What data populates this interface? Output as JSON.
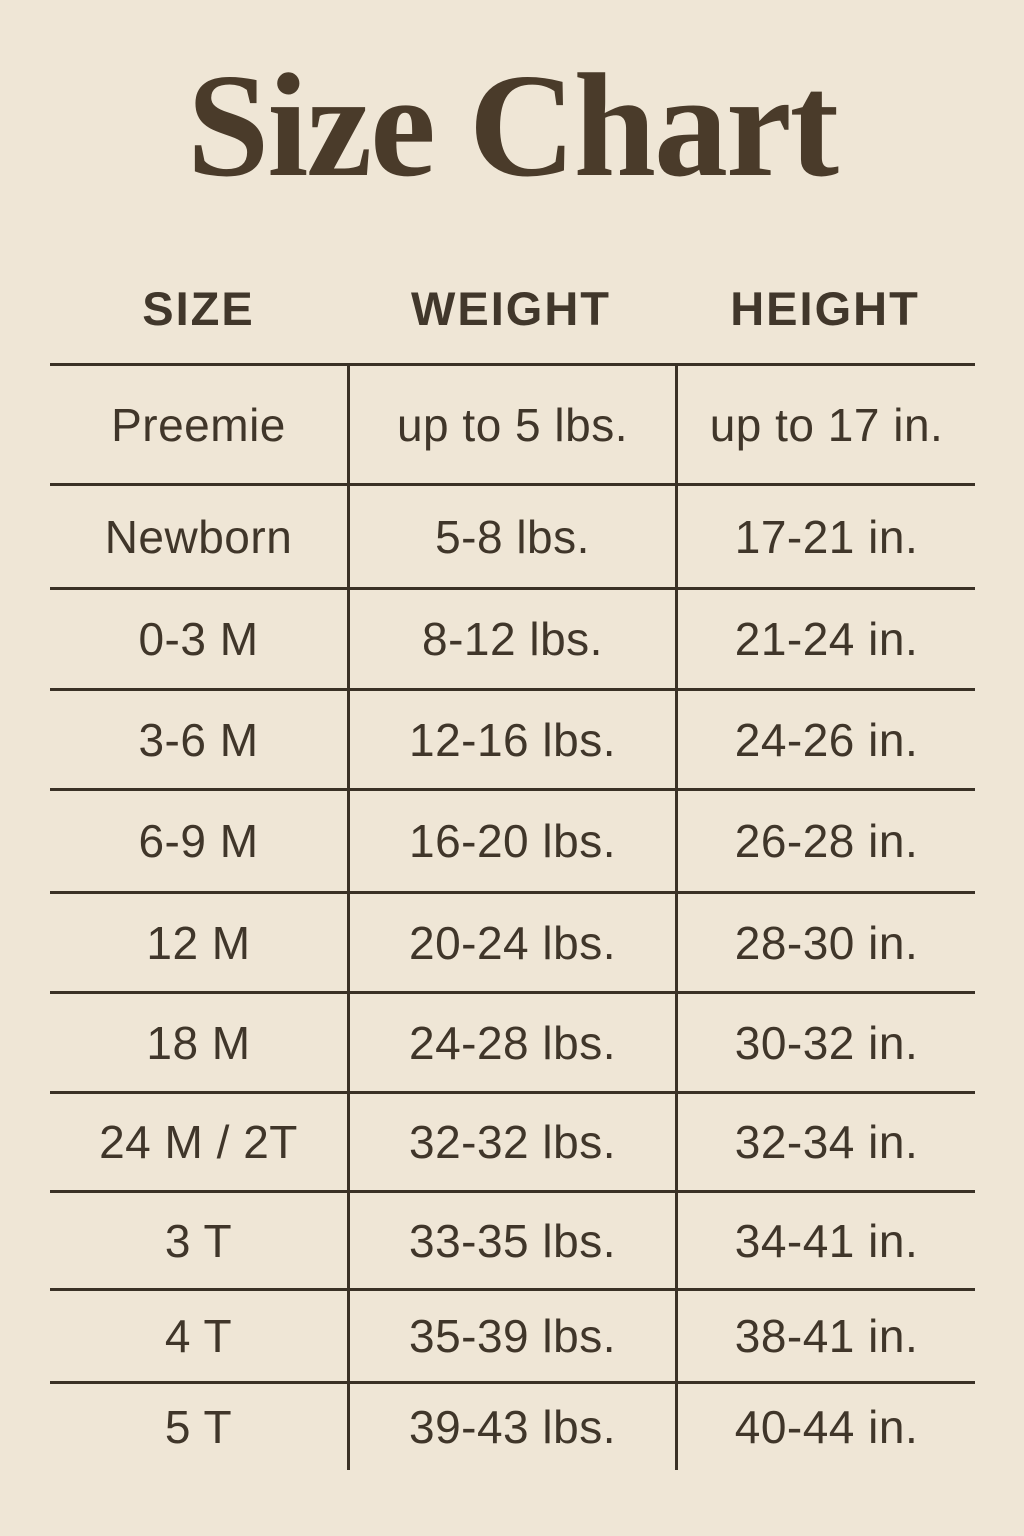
{
  "title": "Size Chart",
  "colors": {
    "background": "#efe6d6",
    "title_text": "#4a3b2a",
    "table_text": "#40362a",
    "rule_lines": "#3a3126"
  },
  "table": {
    "headers": {
      "size": "SIZE",
      "weight": "WEIGHT",
      "height": "HEIGHT"
    },
    "rows": [
      {
        "size": "Preemie",
        "weight": "up to 5 lbs.",
        "height": "up to 17 in."
      },
      {
        "size": "Newborn",
        "weight": "5-8 lbs.",
        "height": "17-21 in."
      },
      {
        "size": "0-3 M",
        "weight": "8-12 lbs.",
        "height": "21-24 in."
      },
      {
        "size": "3-6 M",
        "weight": "12-16 lbs.",
        "height": "24-26 in."
      },
      {
        "size": "6-9 M",
        "weight": "16-20 lbs.",
        "height": "26-28 in."
      },
      {
        "size": "12 M",
        "weight": "20-24 lbs.",
        "height": "28-30 in."
      },
      {
        "size": "18 M",
        "weight": "24-28 lbs.",
        "height": "30-32 in."
      },
      {
        "size": "24 M / 2T",
        "weight": "32-32 lbs.",
        "height": "32-34 in."
      },
      {
        "size": "3 T",
        "weight": "33-35 lbs.",
        "height": "34-41 in."
      },
      {
        "size": "4 T",
        "weight": "35-39 lbs.",
        "height": "38-41 in."
      },
      {
        "size": "5 T",
        "weight": "39-43 lbs.",
        "height": "40-44 in."
      }
    ]
  },
  "chart_data": {
    "type": "table",
    "title": "Size Chart",
    "columns": [
      "SIZE",
      "WEIGHT",
      "HEIGHT"
    ],
    "rows": [
      [
        "Preemie",
        "up to 5 lbs.",
        "up to 17 in."
      ],
      [
        "Newborn",
        "5-8 lbs.",
        "17-21 in."
      ],
      [
        "0-3 M",
        "8-12 lbs.",
        "21-24 in."
      ],
      [
        "3-6 M",
        "12-16 lbs.",
        "24-26 in."
      ],
      [
        "6-9 M",
        "16-20 lbs.",
        "26-28 in."
      ],
      [
        "12 M",
        "20-24 lbs.",
        "28-30 in."
      ],
      [
        "18 M",
        "24-28 lbs.",
        "30-32 in."
      ],
      [
        "24 M / 2T",
        "32-32 lbs.",
        "32-34 in."
      ],
      [
        "3 T",
        "33-35 lbs.",
        "34-41 in."
      ],
      [
        "4 T",
        "35-39 lbs.",
        "38-41 in."
      ],
      [
        "5 T",
        "39-43 lbs.",
        "40-44 in."
      ]
    ]
  }
}
